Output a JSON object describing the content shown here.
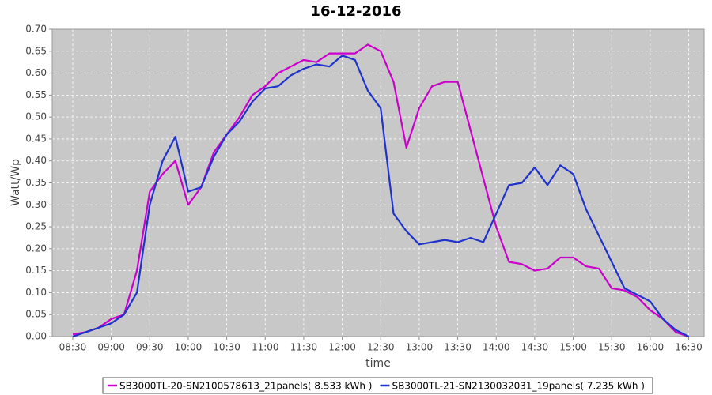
{
  "chart_data": {
    "type": "line",
    "title": "16-12-2016",
    "x_label": "time",
    "y_label": "Watt/Wp",
    "x": [
      "08:30",
      "08:40",
      "08:50",
      "09:00",
      "09:10",
      "09:20",
      "09:30",
      "09:40",
      "09:50",
      "10:00",
      "10:10",
      "10:20",
      "10:30",
      "10:40",
      "10:50",
      "11:00",
      "11:10",
      "11:20",
      "11:30",
      "11:40",
      "11:50",
      "12:00",
      "12:10",
      "12:20",
      "12:30",
      "12:40",
      "12:50",
      "13:00",
      "13:10",
      "13:20",
      "13:30",
      "13:40",
      "13:50",
      "14:00",
      "14:10",
      "14:20",
      "14:30",
      "14:40",
      "14:50",
      "15:00",
      "15:10",
      "15:20",
      "15:30",
      "15:40",
      "15:50",
      "16:00",
      "16:10",
      "16:20",
      "16:30"
    ],
    "series": [
      {
        "name": "SB3000TL-20-SN2100578613_21panels( 8.533 kWh )",
        "color": "#cc00cc",
        "values": [
          0.005,
          0.01,
          0.02,
          0.04,
          0.05,
          0.15,
          0.33,
          0.37,
          0.4,
          0.3,
          0.34,
          0.42,
          0.46,
          0.5,
          0.55,
          0.57,
          0.6,
          0.615,
          0.63,
          0.625,
          0.645,
          0.645,
          0.645,
          0.665,
          0.65,
          0.58,
          0.43,
          0.52,
          0.57,
          0.58,
          0.58,
          0.47,
          0.36,
          0.25,
          0.17,
          0.165,
          0.15,
          0.155,
          0.18,
          0.18,
          0.16,
          0.155,
          0.11,
          0.105,
          0.09,
          0.06,
          0.04,
          0.01,
          0.0
        ]
      },
      {
        "name": "SB3000TL-21-SN2130032031_19panels( 7.235 kWh )",
        "color": "#1f33cc",
        "values": [
          0.0,
          0.01,
          0.02,
          0.03,
          0.05,
          0.1,
          0.3,
          0.4,
          0.455,
          0.33,
          0.34,
          0.41,
          0.46,
          0.49,
          0.535,
          0.565,
          0.57,
          0.595,
          0.61,
          0.62,
          0.615,
          0.64,
          0.63,
          0.56,
          0.52,
          0.28,
          0.24,
          0.21,
          0.215,
          0.22,
          0.215,
          0.225,
          0.215,
          0.28,
          0.345,
          0.35,
          0.385,
          0.345,
          0.39,
          0.37,
          0.29,
          0.23,
          0.17,
          0.11,
          0.095,
          0.08,
          0.04,
          0.015,
          0.0
        ]
      }
    ],
    "xlim": [
      "08:14",
      "16:42"
    ],
    "xticks": [
      "08:30",
      "09:00",
      "09:30",
      "10:00",
      "10:30",
      "11:00",
      "11:30",
      "12:00",
      "12:30",
      "13:00",
      "13:30",
      "14:00",
      "14:30",
      "15:00",
      "15:30",
      "16:00",
      "16:30"
    ],
    "ylim": [
      0,
      0.7
    ],
    "yticks": [
      {
        "value": 0,
        "label": "0.00"
      },
      {
        "value": 0.05,
        "label": "0.05"
      },
      {
        "value": 0.1,
        "label": "0.10"
      },
      {
        "value": 0.15,
        "label": "0.15"
      },
      {
        "value": 0.2,
        "label": "0.20"
      },
      {
        "value": 0.25,
        "label": "0.25"
      },
      {
        "value": 0.3,
        "label": "0.30"
      },
      {
        "value": 0.35,
        "label": "0.35"
      },
      {
        "value": 0.4,
        "label": "0.40"
      },
      {
        "value": 0.45,
        "label": "0.45"
      },
      {
        "value": 0.5,
        "label": "0.50"
      },
      {
        "value": 0.55,
        "label": "0.55"
      },
      {
        "value": 0.6,
        "label": "0.60"
      },
      {
        "value": 0.65,
        "label": "0.65"
      },
      {
        "value": 0.7,
        "label": "0.70"
      }
    ],
    "grid": true,
    "legend": "bottom",
    "background": "#c8c8c8"
  }
}
